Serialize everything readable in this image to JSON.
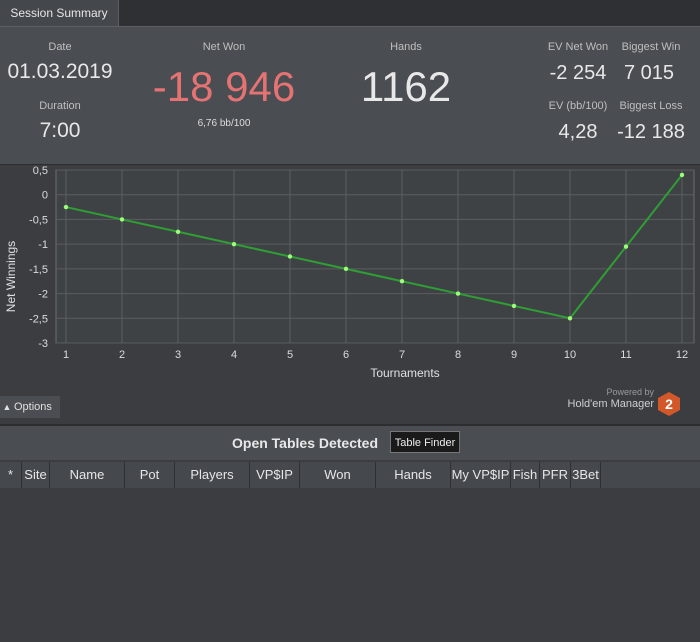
{
  "tab": {
    "label": "Session Summary"
  },
  "summary": {
    "date_label": "Date",
    "date_value": "01.03.2019",
    "duration_label": "Duration",
    "duration_value": "7:00",
    "net_won_label": "Net Won",
    "net_won_value": "-18 946",
    "net_won_sub": "6,76 bb/100",
    "hands_label": "Hands",
    "hands_value": "1162",
    "ev_net_won_label": "EV Net Won",
    "ev_net_won_value": "-2 254",
    "biggest_win_label": "Biggest Win",
    "biggest_win_value": "7 015",
    "ev_bb_label": "EV (bb/100)",
    "ev_bb_value": "4,28",
    "biggest_loss_label": "Biggest Loss",
    "biggest_loss_value": "-12 188"
  },
  "colors": {
    "net_won": "#e57373",
    "line": "#2e9e35",
    "point": "#9cff7a"
  },
  "chart_data": {
    "type": "line",
    "xlabel": "Tournaments",
    "ylabel": "Net Winnings",
    "x": [
      1,
      2,
      3,
      4,
      5,
      6,
      7,
      8,
      9,
      10,
      11,
      12
    ],
    "series": [
      {
        "values": [
          -0.25,
          -0.5,
          -0.75,
          -1.0,
          -1.25,
          -1.5,
          -1.75,
          -2.0,
          -2.25,
          -2.5,
          -1.05,
          0.4
        ]
      }
    ],
    "ylim": [
      -3,
      0.5
    ],
    "xlim": [
      1,
      12
    ],
    "yticks": [
      "0,5",
      "0",
      "-0,5",
      "-1",
      "-1,5",
      "-2",
      "-2,5",
      "-3"
    ],
    "ytick_values": [
      0.5,
      0,
      -0.5,
      -1,
      -1.5,
      -2,
      -2.5,
      -3
    ],
    "xticks": [
      "1",
      "2",
      "3",
      "4",
      "5",
      "6",
      "7",
      "8",
      "9",
      "10",
      "11",
      "12"
    ],
    "grid": true
  },
  "options": {
    "label": "Options"
  },
  "branding": {
    "powered": "Powered by",
    "name": "Hold'em Manager",
    "badge": "2"
  },
  "open_tables": {
    "title": "Open Tables Detected",
    "table_finder": "Table Finder",
    "columns": [
      "*",
      "Site",
      "Name",
      "Pot",
      "Players",
      "VP$IP",
      "Won",
      "Hands",
      "My VP$IP",
      "Fish",
      "PFR",
      "3Bet"
    ]
  }
}
